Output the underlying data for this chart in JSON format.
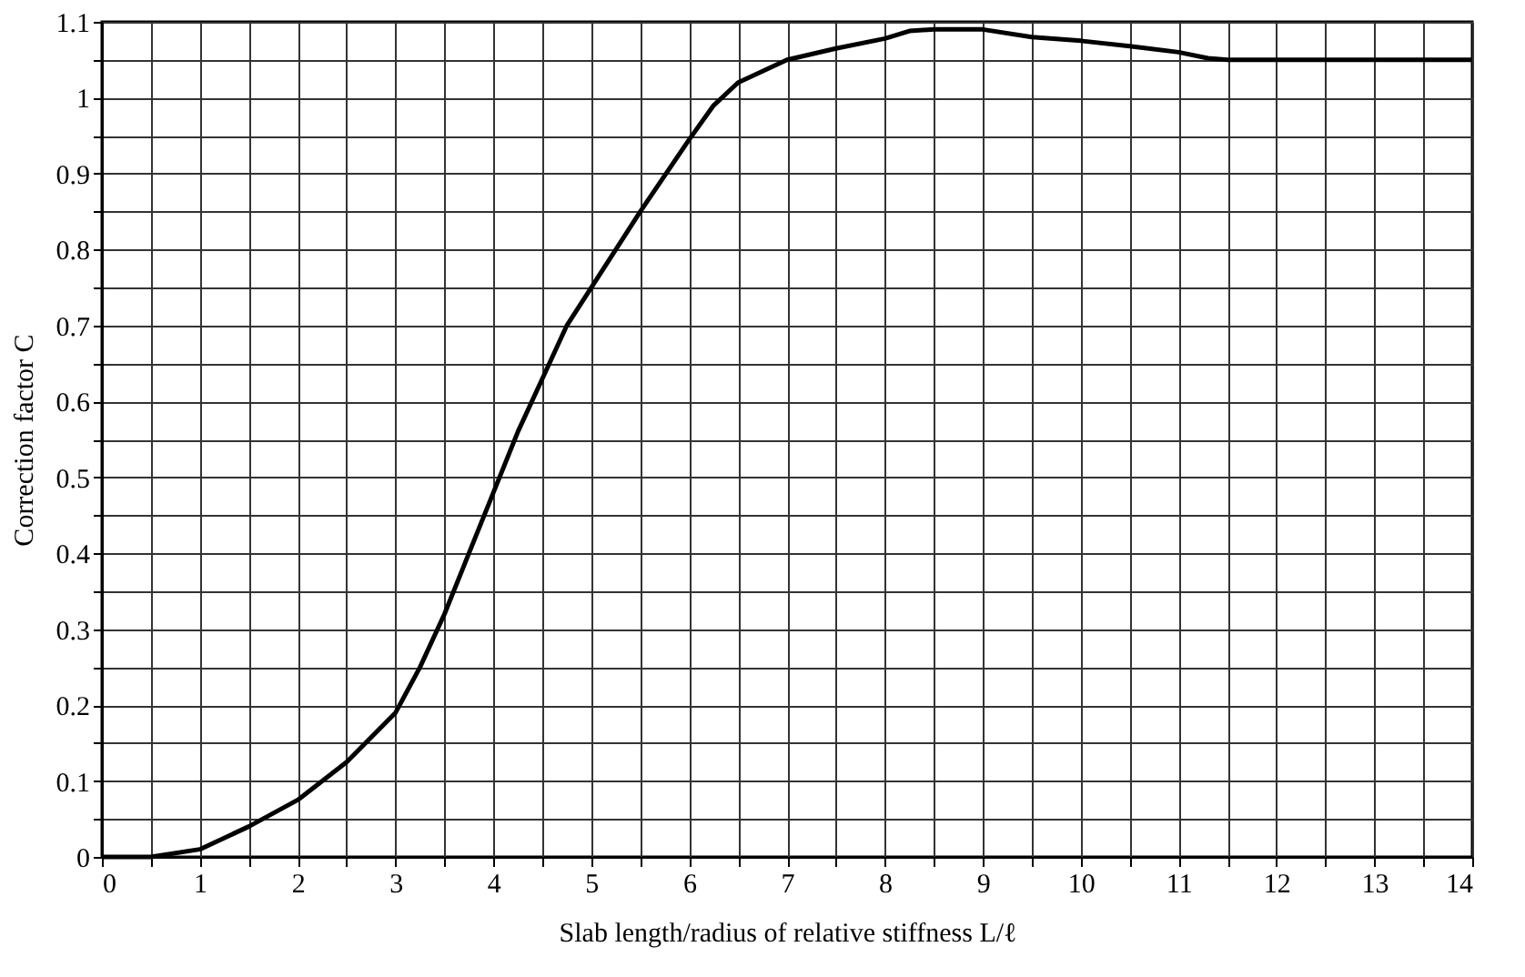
{
  "chart_data": {
    "type": "line",
    "xlabel": "Slab length/radius of relative stiffness L/ℓ",
    "ylabel": "Correction factor C",
    "x": [
      0,
      0.5,
      1,
      1.5,
      2,
      2.5,
      3,
      3.25,
      3.5,
      3.75,
      4,
      4.25,
      4.5,
      4.75,
      5,
      5.5,
      6,
      6.25,
      6.5,
      7,
      7.5,
      8,
      8.25,
      8.5,
      9,
      9.5,
      10,
      10.5,
      11,
      11.3,
      11.5,
      12,
      13,
      14
    ],
    "series": [
      {
        "color": "#000000",
        "values": [
          0,
          0,
          0.01,
          0.04,
          0.075,
          0.125,
          0.19,
          0.25,
          0.32,
          0.4,
          0.48,
          0.56,
          0.63,
          0.7,
          0.75,
          0.85,
          0.945,
          0.99,
          1.02,
          1.05,
          1.065,
          1.078,
          1.088,
          1.09,
          1.09,
          1.08,
          1.075,
          1.068,
          1.06,
          1.052,
          1.05,
          1.05,
          1.05,
          1.05
        ]
      }
    ],
    "xlim": [
      0,
      14
    ],
    "ylim": [
      0,
      1.1
    ],
    "xticks": [
      0,
      {
        "value": 0.5,
        "label": null
      },
      1,
      {
        "value": 1.5,
        "label": null
      },
      2,
      {
        "value": 2.5,
        "label": null
      },
      3,
      {
        "value": 3.5,
        "label": null
      },
      4,
      {
        "value": 4.5,
        "label": null
      },
      5,
      {
        "value": 5.5,
        "label": null
      },
      6,
      {
        "value": 6.5,
        "label": null
      },
      7,
      {
        "value": 7.5,
        "label": null
      },
      8,
      {
        "value": 8.5,
        "label": null
      },
      9,
      {
        "value": 9.5,
        "label": null
      },
      10,
      {
        "value": 10.5,
        "label": null
      },
      11,
      {
        "value": 11.5,
        "label": null
      },
      12,
      {
        "value": 12.5,
        "label": null
      },
      13,
      {
        "value": 13.5,
        "label": null
      },
      14
    ],
    "yticks": [
      0,
      {
        "value": 0.05,
        "label": null
      },
      0.1,
      {
        "value": 0.15,
        "label": null
      },
      0.2,
      {
        "value": 0.25,
        "label": null
      },
      0.3,
      {
        "value": 0.35,
        "label": null
      },
      0.4,
      {
        "value": 0.45,
        "label": null
      },
      0.5,
      {
        "value": 0.55,
        "label": null
      },
      0.6,
      {
        "value": 0.65,
        "label": null
      },
      0.7,
      {
        "value": 0.75,
        "label": null
      },
      0.8,
      {
        "value": 0.85,
        "label": null
      },
      0.9,
      {
        "value": 0.95,
        "label": null
      },
      1,
      {
        "value": 1.05,
        "label": null
      },
      1.1
    ],
    "grid": true,
    "marker": "none",
    "line_style": "solid"
  }
}
